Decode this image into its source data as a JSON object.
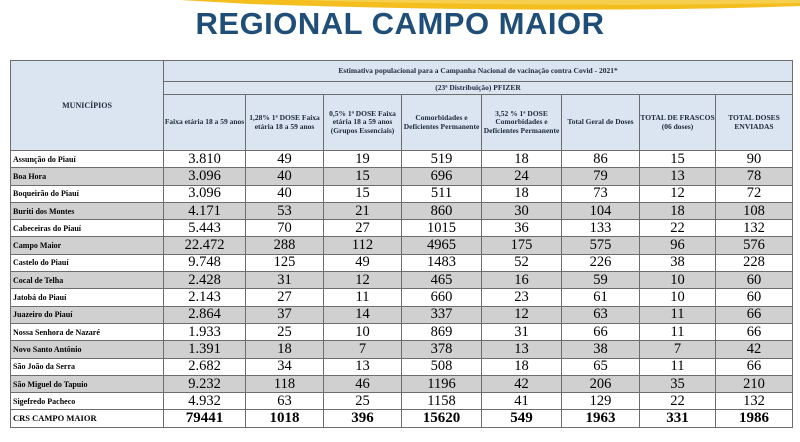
{
  "title": "REGIONAL CAMPO MAIOR",
  "colors": {
    "title": "#1f4e79",
    "header_bg": "#dbe4f1",
    "stripe": "#d0d0d0",
    "swoosh": "#f2b705"
  },
  "table": {
    "caption": "Estimativa populacional para a Campanha Nacional de vacinação contra Covid - 2021*",
    "subcaption": "(23ª Distribuição)  PFIZER",
    "municipios_header": "MUNICÍPIOS",
    "columns": [
      "Faixa etária 18 a 59 anos",
      "1,28% 1ª DOSE Faixa etária 18 a 59 anos",
      "0,5% 1ª DOSE Faixa etária 18 a 59 anos (Grupos Essenciais)",
      "Comorbidades e Deficientes Permanente",
      "3,52 % 1ª DOSE Comorbidades e Deficientes Permanente",
      "Total Geral de Doses",
      "TOTAL DE FRASCOS (06 doses)",
      "TOTAL DOSES ENVIADAS"
    ],
    "rows": [
      [
        "Assunção do Piauí",
        "3.810",
        "49",
        "19",
        "519",
        "18",
        "86",
        "15",
        "90"
      ],
      [
        "Boa Hora",
        "3.096",
        "40",
        "15",
        "696",
        "24",
        "79",
        "13",
        "78"
      ],
      [
        "Boqueirão do Piauí",
        "3.096",
        "40",
        "15",
        "511",
        "18",
        "73",
        "12",
        "72"
      ],
      [
        "Buriti dos Montes",
        "4.171",
        "53",
        "21",
        "860",
        "30",
        "104",
        "18",
        "108"
      ],
      [
        "Cabeceiras do Piauí",
        "5.443",
        "70",
        "27",
        "1015",
        "36",
        "133",
        "22",
        "132"
      ],
      [
        "Campo Maior",
        "22.472",
        "288",
        "112",
        "4965",
        "175",
        "575",
        "96",
        "576"
      ],
      [
        "Castelo do Piauí",
        "9.748",
        "125",
        "49",
        "1483",
        "52",
        "226",
        "38",
        "228"
      ],
      [
        "Cocal de Telha",
        "2.428",
        "31",
        "12",
        "465",
        "16",
        "59",
        "10",
        "60"
      ],
      [
        "Jatobá do Piauí",
        "2.143",
        "27",
        "11",
        "660",
        "23",
        "61",
        "10",
        "60"
      ],
      [
        "Juazeiro do Piauí",
        "2.864",
        "37",
        "14",
        "337",
        "12",
        "63",
        "11",
        "66"
      ],
      [
        "Nossa Senhora de Nazaré",
        "1.933",
        "25",
        "10",
        "869",
        "31",
        "66",
        "11",
        "66"
      ],
      [
        "Novo Santo Antônio",
        "1.391",
        "18",
        "7",
        "378",
        "13",
        "38",
        "7",
        "42"
      ],
      [
        "São João da Serra",
        "2.682",
        "34",
        "13",
        "508",
        "18",
        "65",
        "11",
        "66"
      ],
      [
        "São Miguel do Tapuio",
        "9.232",
        "118",
        "46",
        "1196",
        "42",
        "206",
        "35",
        "210"
      ],
      [
        "Sigefredo Pacheco",
        "4.932",
        "63",
        "25",
        "1158",
        "41",
        "129",
        "22",
        "132"
      ]
    ],
    "total": [
      "CRS CAMPO MAIOR",
      "79441",
      "1018",
      "396",
      "15620",
      "549",
      "1963",
      "331",
      "1986"
    ]
  }
}
